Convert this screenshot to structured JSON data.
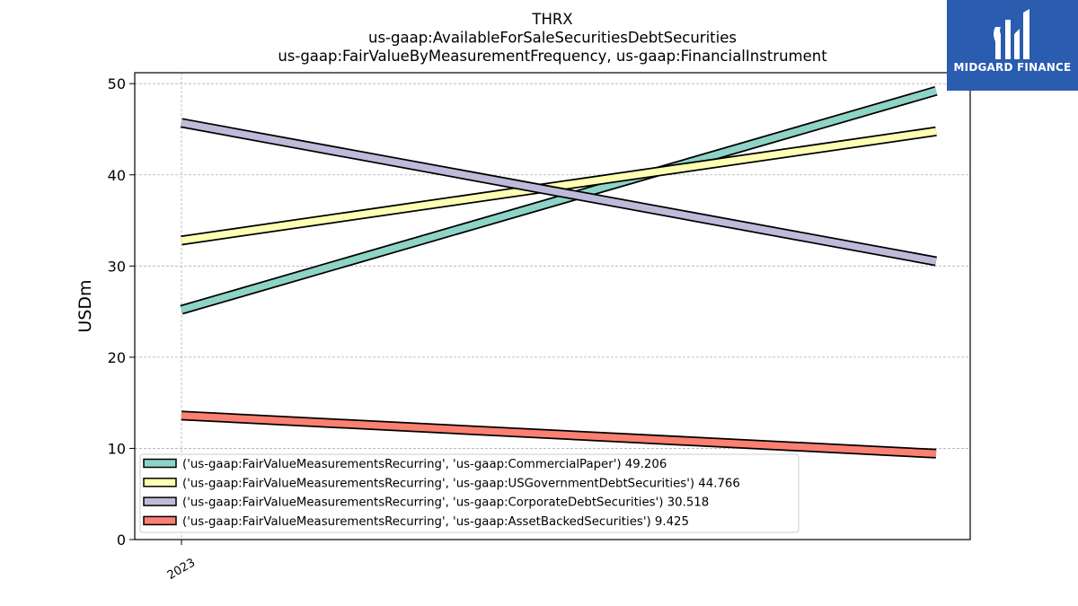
{
  "chart_data": {
    "type": "line",
    "title_lines": [
      "THRX",
      "us-gaap:AvailableForSaleSecuritiesDebtSecurities",
      "us-gaap:FairValueByMeasurementFrequency, us-gaap:FinancialInstrument"
    ],
    "ylabel": "USDm",
    "ylim": [
      0,
      51.2
    ],
    "yticks": [
      0,
      10,
      20,
      30,
      40,
      50
    ],
    "xtick_labels": [
      "2023"
    ],
    "grid": true,
    "legend_position": "lower-left",
    "series": [
      {
        "name": "('us-gaap:FairValueMeasurementsRecurring', 'us-gaap:CommercialPaper')",
        "end_label": "49.206",
        "color": "#8dd3c7",
        "values": [
          25.2,
          49.206
        ]
      },
      {
        "name": "('us-gaap:FairValueMeasurementsRecurring', 'us-gaap:USGovernmentDebtSecurities')",
        "end_label": "44.766",
        "color": "#ffffb3",
        "values": [
          32.8,
          44.766
        ]
      },
      {
        "name": "('us-gaap:FairValueMeasurementsRecurring', 'us-gaap:CorporateDebtSecurities')",
        "end_label": "30.518",
        "color": "#bebada",
        "values": [
          45.7,
          30.518
        ]
      },
      {
        "name": "('us-gaap:FairValueMeasurementsRecurring', 'us-gaap:AssetBackedSecurities')",
        "end_label": "9.425",
        "color": "#fb8072",
        "values": [
          13.6,
          9.425
        ]
      }
    ]
  },
  "logo": {
    "text": "MIDGARD FINANCE",
    "color": "#2a5cb0"
  }
}
